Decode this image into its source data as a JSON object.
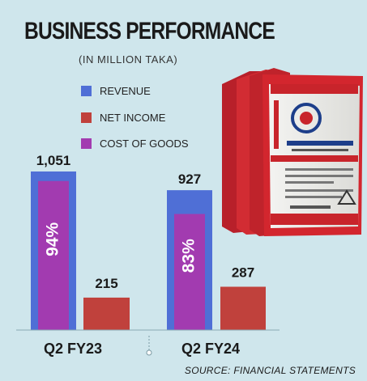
{
  "header": {
    "title": "BUSINESS PERFORMANCE",
    "subtitle": "(IN MILLION TAKA)"
  },
  "legend": [
    {
      "label": "REVENUE",
      "color": "#4f6fd6"
    },
    {
      "label": "NET INCOME",
      "color": "#c0413c"
    },
    {
      "label": "COST OF GOODS",
      "color": "#a23bb0"
    }
  ],
  "product_image": {
    "icon": "cement-bags-icon",
    "color": "#c8242b"
  },
  "chart_data": {
    "type": "bar",
    "categories": [
      "Q2 FY23",
      "Q2 FY24"
    ],
    "series": [
      {
        "name": "REVENUE",
        "values": [
          1051,
          927
        ],
        "labels": [
          "1,051",
          "927"
        ],
        "color": "#4f6fd6"
      },
      {
        "name": "NET INCOME",
        "values": [
          215,
          287
        ],
        "labels": [
          "215",
          "287"
        ],
        "color": "#c0413c"
      },
      {
        "name": "COST OF GOODS",
        "percent_of_revenue": [
          94,
          83
        ],
        "labels": [
          "94%",
          "83%"
        ],
        "color": "#a23bb0"
      }
    ],
    "ylim": [
      0,
      1051
    ]
  },
  "footer": {
    "source": "SOURCE: FINANCIAL STATEMENTS"
  }
}
